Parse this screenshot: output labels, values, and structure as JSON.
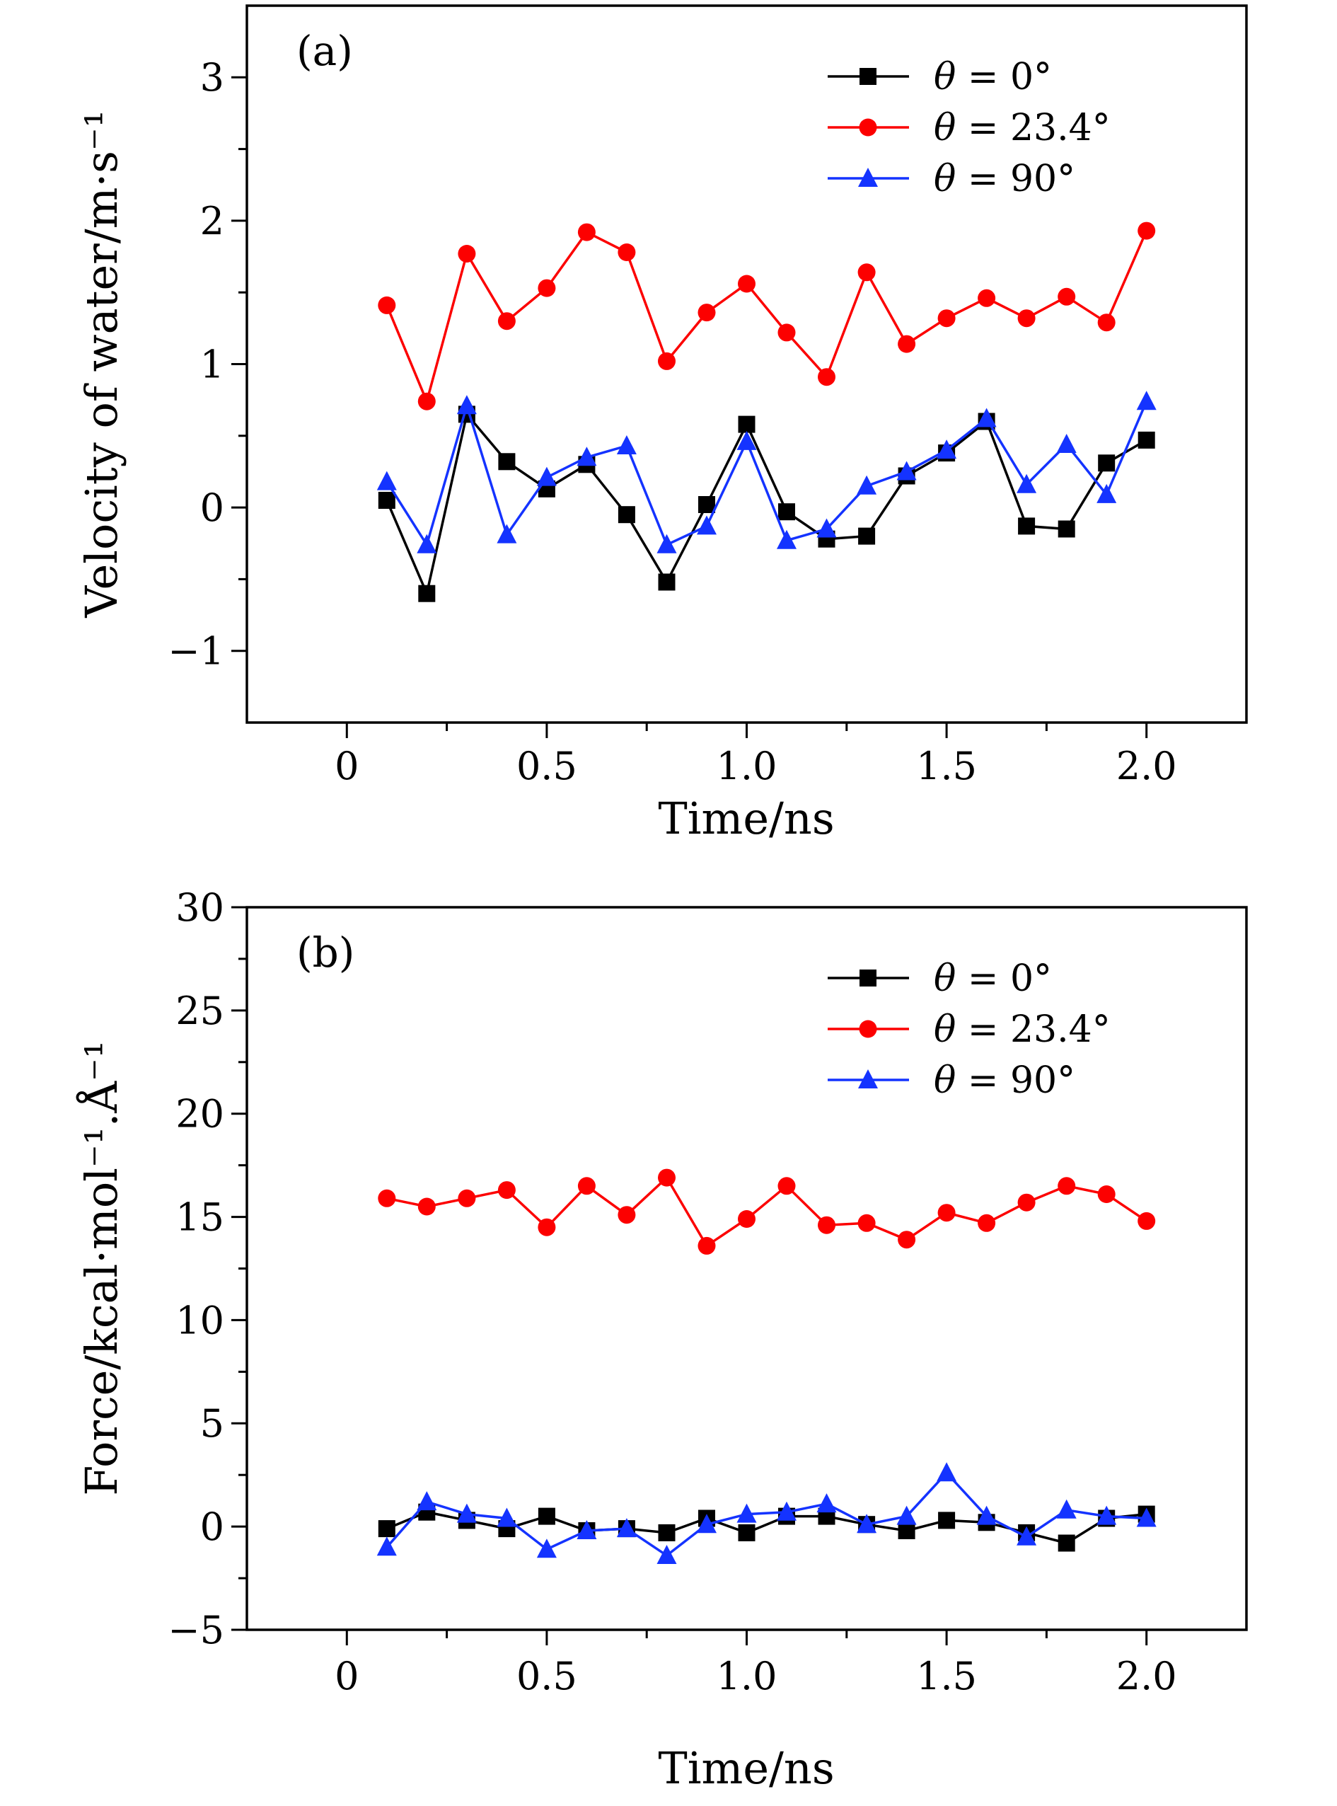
{
  "figure": {
    "panel_count": 2,
    "background": "#ffffff"
  },
  "colors": {
    "series_black": "#000000",
    "series_red": "#fc0000",
    "series_blue": "#1433ff"
  },
  "chart_data": [
    {
      "type": "line",
      "panel_label": "(a)",
      "title": "",
      "xlabel": "Time/ns",
      "ylabel": "Velocity of water/m·s⁻¹",
      "x": [
        0.1,
        0.2,
        0.3,
        0.4,
        0.5,
        0.6,
        0.7,
        0.8,
        0.9,
        1.0,
        1.1,
        1.2,
        1.3,
        1.4,
        1.5,
        1.6,
        1.7,
        1.8,
        1.9,
        2.0
      ],
      "series": [
        {
          "name": "θ = 0°",
          "marker": "square",
          "color": "#000000",
          "values": [
            0.05,
            -0.6,
            0.65,
            0.32,
            0.13,
            0.3,
            -0.05,
            -0.52,
            0.02,
            0.58,
            -0.03,
            -0.22,
            -0.2,
            0.22,
            0.38,
            0.6,
            -0.13,
            -0.15,
            0.31,
            0.47
          ]
        },
        {
          "name": "θ = 23.4°",
          "marker": "circle",
          "color": "#fc0000",
          "values": [
            1.41,
            0.74,
            1.77,
            1.3,
            1.53,
            1.92,
            1.78,
            1.02,
            1.36,
            1.56,
            1.22,
            0.91,
            1.64,
            1.14,
            1.32,
            1.46,
            1.32,
            1.47,
            1.29,
            1.93
          ]
        },
        {
          "name": "θ = 90°",
          "marker": "triangle",
          "color": "#1433ff",
          "values": [
            0.18,
            -0.26,
            0.71,
            -0.19,
            0.21,
            0.35,
            0.43,
            -0.26,
            -0.13,
            0.46,
            -0.23,
            -0.15,
            0.15,
            0.25,
            0.4,
            0.62,
            0.16,
            0.44,
            0.09,
            0.74
          ]
        }
      ],
      "xlim": [
        -0.25,
        2.25
      ],
      "ylim": [
        -1.5,
        3.5
      ],
      "xticks": [
        0,
        0.5,
        1.0,
        1.5,
        2.0
      ],
      "xtick_labels": [
        "0",
        "0.5",
        "1.0",
        "1.5",
        "2.0"
      ],
      "yticks": [
        -1,
        0,
        1,
        2,
        3
      ],
      "ytick_labels": [
        "−1",
        "0",
        "1",
        "2",
        "3"
      ],
      "x_minor_step": 0.25,
      "y_minor_step": 0.5,
      "grid": false,
      "legend_position": "top-right"
    },
    {
      "type": "line",
      "panel_label": "(b)",
      "title": "",
      "xlabel": "Time/ns",
      "ylabel": "Force/kcal·mol⁻¹.Å⁻¹",
      "x": [
        0.1,
        0.2,
        0.3,
        0.4,
        0.5,
        0.6,
        0.7,
        0.8,
        0.9,
        1.0,
        1.1,
        1.2,
        1.3,
        1.4,
        1.5,
        1.6,
        1.7,
        1.8,
        1.9,
        2.0
      ],
      "series": [
        {
          "name": "θ = 0°",
          "marker": "square",
          "color": "#000000",
          "values": [
            -0.1,
            0.7,
            0.3,
            -0.1,
            0.5,
            -0.2,
            -0.1,
            -0.3,
            0.4,
            -0.3,
            0.5,
            0.5,
            0.1,
            -0.2,
            0.3,
            0.2,
            -0.3,
            -0.8,
            0.4,
            0.6
          ]
        },
        {
          "name": "θ = 23.4°",
          "marker": "circle",
          "color": "#fc0000",
          "values": [
            15.9,
            15.5,
            15.9,
            16.3,
            14.5,
            16.5,
            15.1,
            16.9,
            13.6,
            14.9,
            16.5,
            14.6,
            14.7,
            13.9,
            15.2,
            14.7,
            15.7,
            16.5,
            16.1,
            14.8
          ]
        },
        {
          "name": "θ = 90°",
          "marker": "triangle",
          "color": "#1433ff",
          "values": [
            -1.0,
            1.2,
            0.6,
            0.4,
            -1.1,
            -0.2,
            -0.1,
            -1.4,
            0.1,
            0.6,
            0.7,
            1.1,
            0.1,
            0.5,
            2.6,
            0.5,
            -0.5,
            0.8,
            0.5,
            0.4
          ]
        }
      ],
      "xlim": [
        -0.25,
        2.25
      ],
      "ylim": [
        -5,
        30
      ],
      "xticks": [
        0,
        0.5,
        1.0,
        1.5,
        2.0
      ],
      "xtick_labels": [
        "0",
        "0.5",
        "1.0",
        "1.5",
        "2.0"
      ],
      "yticks": [
        -5,
        0,
        5,
        10,
        15,
        20,
        25,
        30
      ],
      "ytick_labels": [
        "−5",
        "0",
        "5",
        "10",
        "15",
        "20",
        "25",
        "30"
      ],
      "x_minor_step": 0.25,
      "y_minor_step": 2.5,
      "grid": false,
      "legend_position": "top-right"
    }
  ]
}
